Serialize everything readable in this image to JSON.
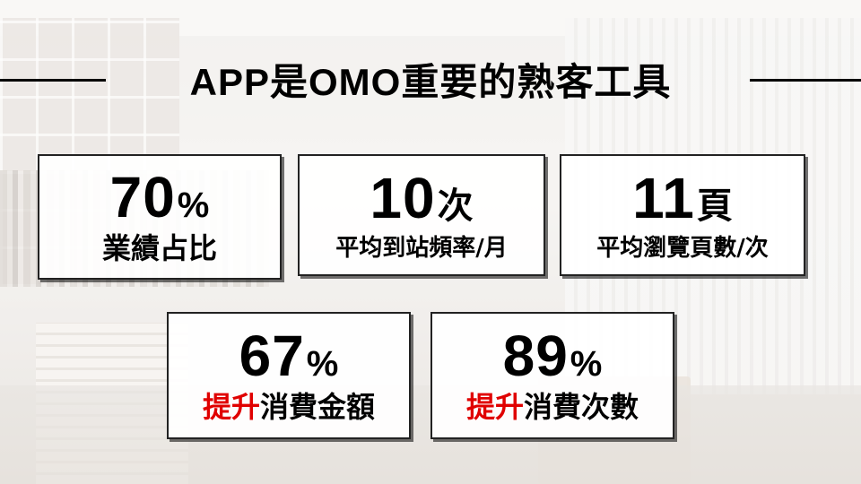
{
  "title": "APP是OMO重要的熟客工具",
  "stats": [
    {
      "value": "70",
      "unit": "%",
      "label": "業績占比",
      "label_highlight": ""
    },
    {
      "value": "10",
      "unit": "次",
      "label": "平均到站頻率/月",
      "label_highlight": ""
    },
    {
      "value": "11",
      "unit": "頁",
      "label": "平均瀏覽頁數/次",
      "label_highlight": ""
    },
    {
      "value": "67",
      "unit": "%",
      "label": "消費金額",
      "label_highlight": "提升"
    },
    {
      "value": "89",
      "unit": "%",
      "label": "消費次數",
      "label_highlight": "提升"
    }
  ],
  "colors": {
    "highlight": "#e00000",
    "text": "#000000",
    "card_border": "#222222"
  }
}
